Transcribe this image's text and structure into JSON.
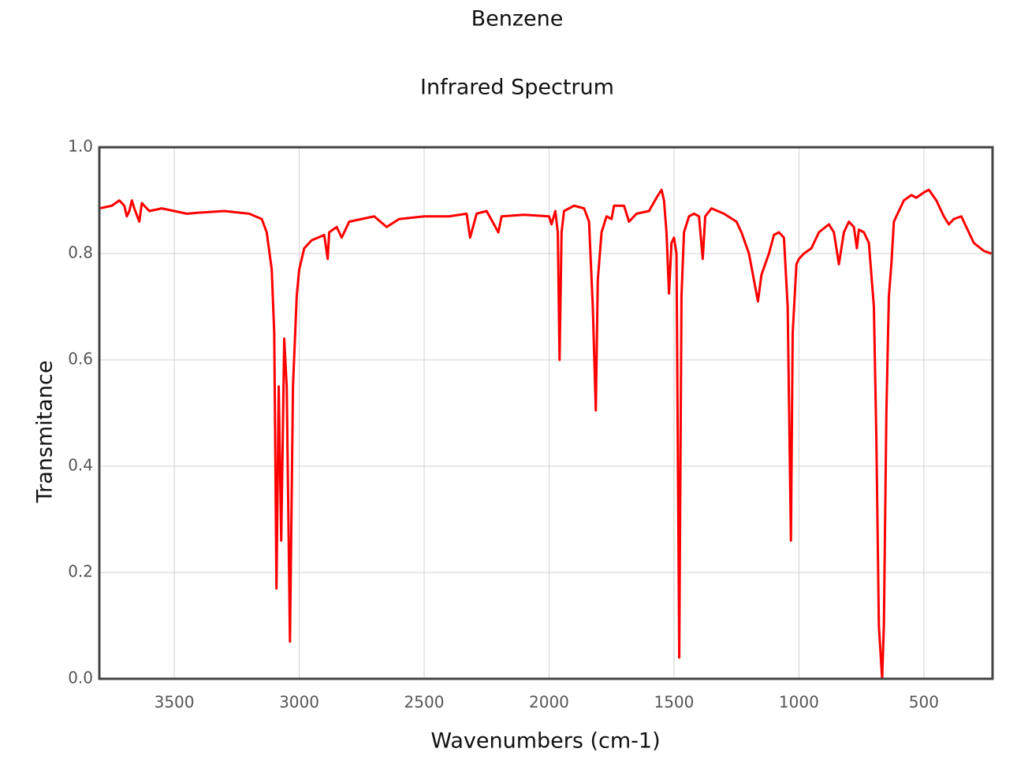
{
  "chart_data": {
    "type": "line",
    "title": "Benzene",
    "subtitle": "Infrared Spectrum",
    "x_label": "Wavenumbers (cm-1)",
    "y_label": "Transmitance",
    "color": "#ff0000",
    "grid": true,
    "xlim": [
      3800,
      225
    ],
    "ylim": [
      0,
      1
    ],
    "xticks": [
      3500,
      3000,
      2500,
      2000,
      1500,
      1000,
      500
    ],
    "yticks": [
      {
        "value": 0,
        "label": "0.0"
      },
      0.2,
      0.4,
      0.6,
      0.8,
      {
        "value": 1,
        "label": "1.0"
      }
    ],
    "x": [
      3800,
      3750,
      3720,
      3700,
      3690,
      3680,
      3670,
      3660,
      3640,
      3630,
      3600,
      3550,
      3500,
      3450,
      3400,
      3300,
      3200,
      3150,
      3130,
      3110,
      3100,
      3091,
      3082,
      3072,
      3060,
      3050,
      3037,
      3025,
      3010,
      3000,
      2980,
      2950,
      2900,
      2886,
      2880,
      2850,
      2830,
      2800,
      2700,
      2650,
      2600,
      2500,
      2400,
      2330,
      2316,
      2290,
      2250,
      2203,
      2190,
      2100,
      2000,
      1990,
      1975,
      1965,
      1958,
      1950,
      1940,
      1900,
      1860,
      1840,
      1825,
      1813,
      1805,
      1790,
      1770,
      1750,
      1740,
      1700,
      1680,
      1650,
      1600,
      1570,
      1550,
      1540,
      1530,
      1520,
      1510,
      1500,
      1490,
      1479,
      1470,
      1460,
      1440,
      1420,
      1400,
      1385,
      1375,
      1350,
      1300,
      1250,
      1230,
      1200,
      1180,
      1164,
      1150,
      1120,
      1100,
      1080,
      1060,
      1045,
      1032,
      1025,
      1010,
      1000,
      980,
      950,
      920,
      880,
      860,
      840,
      820,
      800,
      780,
      768,
      760,
      740,
      720,
      700,
      690,
      680,
      667,
      660,
      650,
      640,
      630,
      620,
      600,
      580,
      550,
      530,
      500,
      480,
      450,
      420,
      400,
      380,
      350,
      330,
      300,
      260,
      230
    ],
    "values": [
      0.885,
      0.89,
      0.9,
      0.89,
      0.87,
      0.88,
      0.9,
      0.885,
      0.86,
      0.895,
      0.88,
      0.885,
      0.88,
      0.875,
      0.877,
      0.88,
      0.875,
      0.865,
      0.84,
      0.77,
      0.65,
      0.17,
      0.55,
      0.26,
      0.64,
      0.55,
      0.07,
      0.55,
      0.72,
      0.77,
      0.81,
      0.825,
      0.835,
      0.79,
      0.84,
      0.85,
      0.83,
      0.86,
      0.87,
      0.85,
      0.865,
      0.87,
      0.87,
      0.875,
      0.83,
      0.875,
      0.88,
      0.84,
      0.87,
      0.873,
      0.87,
      0.855,
      0.88,
      0.84,
      0.6,
      0.84,
      0.88,
      0.89,
      0.885,
      0.86,
      0.7,
      0.505,
      0.75,
      0.84,
      0.87,
      0.865,
      0.89,
      0.89,
      0.86,
      0.875,
      0.88,
      0.905,
      0.92,
      0.9,
      0.84,
      0.725,
      0.82,
      0.83,
      0.8,
      0.04,
      0.72,
      0.84,
      0.87,
      0.875,
      0.87,
      0.79,
      0.87,
      0.885,
      0.875,
      0.86,
      0.84,
      0.8,
      0.75,
      0.71,
      0.76,
      0.8,
      0.835,
      0.84,
      0.83,
      0.7,
      0.26,
      0.65,
      0.78,
      0.79,
      0.8,
      0.81,
      0.84,
      0.855,
      0.84,
      0.78,
      0.84,
      0.86,
      0.85,
      0.81,
      0.845,
      0.84,
      0.82,
      0.7,
      0.45,
      0.1,
      0.0,
      0.1,
      0.5,
      0.72,
      0.78,
      0.86,
      0.88,
      0.9,
      0.91,
      0.905,
      0.915,
      0.92,
      0.9,
      0.87,
      0.855,
      0.865,
      0.87,
      0.85,
      0.82,
      0.805,
      0.8
    ]
  }
}
